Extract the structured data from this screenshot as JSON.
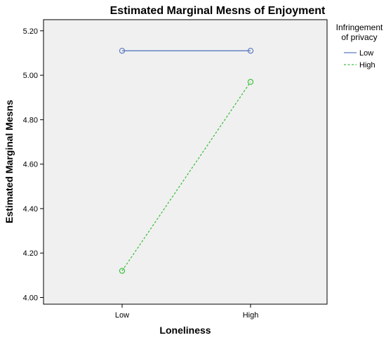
{
  "chart_data": {
    "type": "line",
    "title": "Estimated Marginal Mesns of Enjoyment",
    "xlabel": "Loneliness",
    "ylabel": "Estimated Marginal Mesns",
    "categories": [
      "Low",
      "High"
    ],
    "ylim": [
      3.97,
      5.25
    ],
    "yticks": [
      4.0,
      4.2,
      4.4,
      4.6,
      4.8,
      5.0,
      5.2
    ],
    "ytick_labels": [
      "4.00",
      "4.20",
      "4.40",
      "4.60",
      "4.80",
      "5.00",
      "5.20"
    ],
    "grid": false,
    "legend": {
      "title_lines": [
        "Infringement",
        "of privacy"
      ],
      "placement": "right"
    },
    "series": [
      {
        "name": "Low",
        "values": [
          5.11,
          5.11
        ],
        "color": "#5b7bc0",
        "style": "solid"
      },
      {
        "name": "High",
        "values": [
          4.12,
          4.97
        ],
        "color": "#3fc03f",
        "style": "dashed"
      }
    ]
  }
}
